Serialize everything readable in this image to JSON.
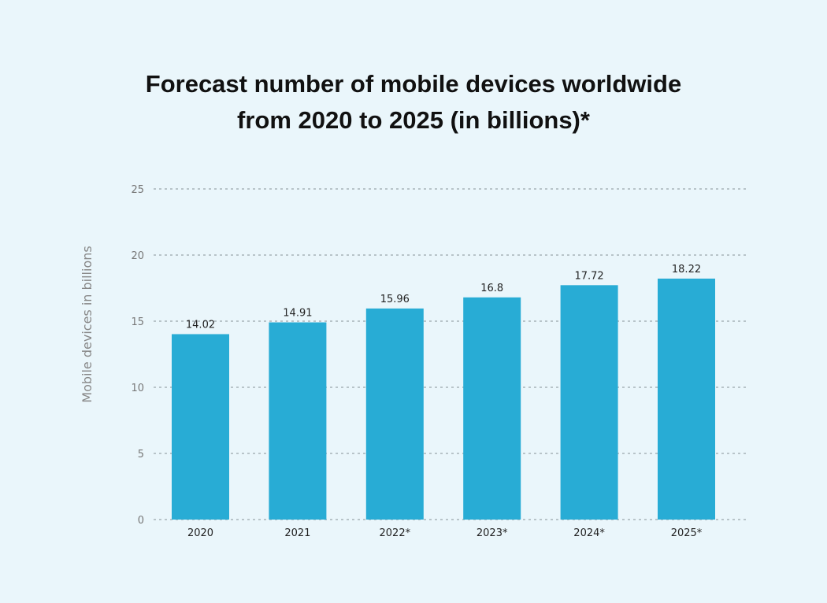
{
  "chart_data": {
    "type": "bar",
    "title_lines": [
      "Forecast number of mobile devices worldwide",
      "from 2020 to 2025 (in billions)*"
    ],
    "xlabel": "",
    "ylabel": "Mobile devices in billions",
    "categories": [
      "2020",
      "2021",
      "2022*",
      "2023*",
      "2024*",
      "2025*"
    ],
    "values": [
      14.02,
      14.91,
      15.96,
      16.8,
      17.72,
      18.22
    ],
    "data_labels": [
      "14.02",
      "14.91",
      "15.96",
      "16.8",
      "17.72",
      "18.22"
    ],
    "ylim": [
      0,
      25
    ],
    "yticks": [
      0,
      5,
      10,
      15,
      20,
      25
    ],
    "grid": "horizontal dashed",
    "legend": "none",
    "colors": {
      "bar": "#28acd5",
      "background": "#eaf6fb",
      "grid": "#9aa6ab"
    }
  }
}
